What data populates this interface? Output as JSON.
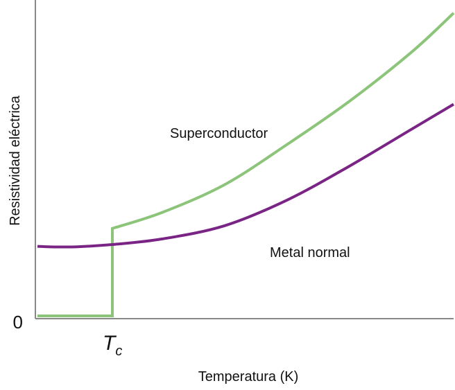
{
  "chart_data": {
    "type": "line",
    "xlabel": "Temperatura (K)",
    "ylabel": "Resistividad eléctrica",
    "x_ticks": [
      {
        "x": 0.18,
        "label": "T",
        "subscript": "c"
      }
    ],
    "y_ticks": [
      {
        "y": 0,
        "label": "0"
      }
    ],
    "xlim": [
      0,
      1
    ],
    "ylim": [
      0,
      1
    ],
    "grid": false,
    "legend": "none",
    "series": [
      {
        "name": "Superconductor",
        "color": "#8cc47a",
        "x": [
          0,
          0.18,
          0.18,
          0.18,
          0.3,
          0.45,
          0.6,
          0.75,
          0.9,
          1.0
        ],
        "y": [
          0,
          0,
          0,
          0.283,
          0.335,
          0.425,
          0.555,
          0.695,
          0.855,
          0.98
        ]
      },
      {
        "name": "Metal normal",
        "color": "#7a2585",
        "x": [
          0,
          0.05,
          0.1,
          0.18,
          0.3,
          0.45,
          0.6,
          0.75,
          0.9,
          1.0
        ],
        "y": [
          0.225,
          0.223,
          0.224,
          0.231,
          0.249,
          0.292,
          0.375,
          0.485,
          0.605,
          0.685
        ]
      }
    ]
  }
}
